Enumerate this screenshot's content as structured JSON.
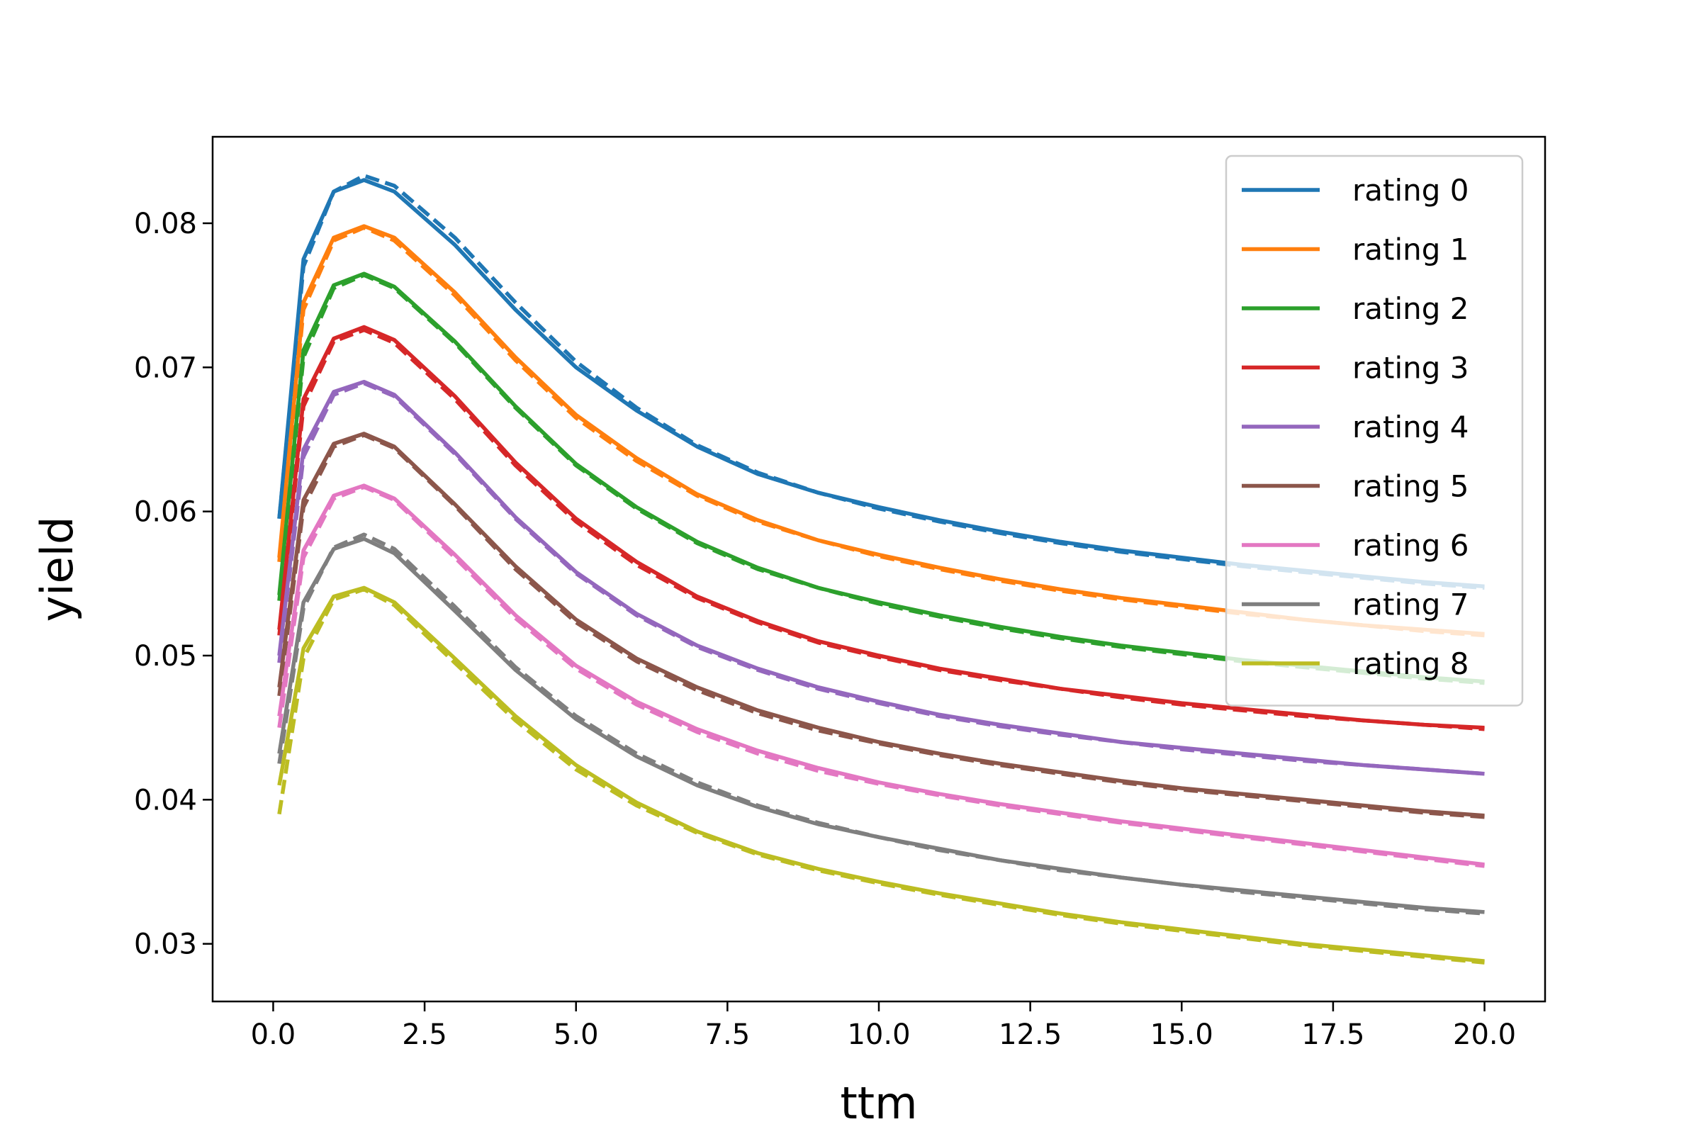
{
  "chart_data": {
    "type": "line",
    "title": "",
    "xlabel": "ttm",
    "ylabel": "yield",
    "xlim": [
      -1.0,
      21.0
    ],
    "ylim": [
      0.026,
      0.086
    ],
    "xticks": [
      0.0,
      2.5,
      5.0,
      7.5,
      10.0,
      12.5,
      15.0,
      17.5,
      20.0
    ],
    "xtick_labels": [
      "0.0",
      "2.5",
      "5.0",
      "7.5",
      "10.0",
      "12.5",
      "15.0",
      "17.5",
      "20.0"
    ],
    "yticks": [
      0.03,
      0.04,
      0.05,
      0.06,
      0.07,
      0.08
    ],
    "ytick_labels": [
      "0.03",
      "0.04",
      "0.05",
      "0.06",
      "0.07",
      "0.08"
    ],
    "grid": false,
    "legend_position": "top-right",
    "line_styles": [
      "solid",
      "dashed"
    ],
    "x": [
      0.1,
      0.5,
      1.0,
      1.5,
      2.0,
      3.0,
      4.0,
      5.0,
      6.0,
      7.0,
      8.0,
      9.0,
      10.0,
      11.0,
      12.0,
      13.0,
      14.0,
      15.0,
      16.0,
      17.0,
      18.0,
      19.0,
      20.0
    ],
    "series": [
      {
        "name": "rating 0",
        "color": "#1f77b4",
        "values": [
          0.0595,
          0.0775,
          0.0822,
          0.083,
          0.0822,
          0.0785,
          0.074,
          0.07,
          0.067,
          0.0645,
          0.0626,
          0.0613,
          0.0603,
          0.0594,
          0.0586,
          0.0579,
          0.0573,
          0.0568,
          0.0563,
          0.0559,
          0.0555,
          0.0551,
          0.0548
        ],
        "dashed_values": [
          0.0595,
          0.077,
          0.0822,
          0.0833,
          0.0826,
          0.079,
          0.0745,
          0.0704,
          0.0672,
          0.0646,
          0.0627,
          0.0613,
          0.0602,
          0.0593,
          0.0585,
          0.0578,
          0.0572,
          0.0567,
          0.0562,
          0.0558,
          0.0554,
          0.055,
          0.0547
        ]
      },
      {
        "name": "rating 1",
        "color": "#ff7f0e",
        "values": [
          0.0568,
          0.0745,
          0.079,
          0.0798,
          0.079,
          0.0752,
          0.0707,
          0.0667,
          0.0637,
          0.0612,
          0.0594,
          0.058,
          0.057,
          0.0561,
          0.0553,
          0.0546,
          0.054,
          0.0535,
          0.053,
          0.0525,
          0.0521,
          0.0518,
          0.0515
        ],
        "dashed_values": [
          0.0565,
          0.074,
          0.0788,
          0.0797,
          0.0788,
          0.075,
          0.0705,
          0.0665,
          0.0635,
          0.0611,
          0.0593,
          0.058,
          0.0569,
          0.056,
          0.0552,
          0.0545,
          0.0539,
          0.0534,
          0.0529,
          0.0525,
          0.0521,
          0.0517,
          0.0514
        ]
      },
      {
        "name": "rating 2",
        "color": "#2ca02c",
        "values": [
          0.0542,
          0.0712,
          0.0757,
          0.0765,
          0.0756,
          0.0718,
          0.0673,
          0.0633,
          0.0603,
          0.0579,
          0.0561,
          0.0547,
          0.0537,
          0.0528,
          0.052,
          0.0513,
          0.0507,
          0.0502,
          0.0497,
          0.0493,
          0.0489,
          0.0485,
          0.0482
        ],
        "dashed_values": [
          0.0538,
          0.0707,
          0.0755,
          0.0764,
          0.0755,
          0.0717,
          0.0672,
          0.0632,
          0.0602,
          0.0578,
          0.056,
          0.0547,
          0.0536,
          0.0527,
          0.0519,
          0.0512,
          0.0506,
          0.0501,
          0.0496,
          0.0492,
          0.0488,
          0.0484,
          0.0481
        ]
      },
      {
        "name": "rating 3",
        "color": "#d62728",
        "values": [
          0.0518,
          0.0678,
          0.072,
          0.0728,
          0.0719,
          0.068,
          0.0634,
          0.0595,
          0.0565,
          0.0541,
          0.0524,
          0.051,
          0.05,
          0.0491,
          0.0484,
          0.0477,
          0.0472,
          0.0467,
          0.0463,
          0.0459,
          0.0455,
          0.0452,
          0.045
        ],
        "dashed_values": [
          0.0514,
          0.0673,
          0.0718,
          0.0726,
          0.0717,
          0.0678,
          0.0632,
          0.0593,
          0.0563,
          0.054,
          0.0523,
          0.0509,
          0.0499,
          0.049,
          0.0483,
          0.0477,
          0.0471,
          0.0466,
          0.0462,
          0.0458,
          0.0455,
          0.0452,
          0.0449
        ]
      },
      {
        "name": "rating 4",
        "color": "#9467bd",
        "values": [
          0.05,
          0.0643,
          0.0683,
          0.069,
          0.0681,
          0.0641,
          0.0596,
          0.0558,
          0.0529,
          0.0507,
          0.0491,
          0.0478,
          0.0468,
          0.0459,
          0.0452,
          0.0446,
          0.044,
          0.0436,
          0.0432,
          0.0428,
          0.0424,
          0.0421,
          0.0418
        ],
        "dashed_values": [
          0.0495,
          0.0638,
          0.0681,
          0.0689,
          0.068,
          0.064,
          0.0595,
          0.0557,
          0.0528,
          0.0506,
          0.049,
          0.0477,
          0.0467,
          0.0458,
          0.0451,
          0.0445,
          0.044,
          0.0435,
          0.0431,
          0.0427,
          0.0424,
          0.0421,
          0.0418
        ]
      },
      {
        "name": "rating 5",
        "color": "#8c564b",
        "values": [
          0.0478,
          0.0608,
          0.0647,
          0.0654,
          0.0645,
          0.0605,
          0.0562,
          0.0525,
          0.0498,
          0.0478,
          0.0462,
          0.045,
          0.044,
          0.0432,
          0.0425,
          0.0419,
          0.0413,
          0.0408,
          0.0404,
          0.04,
          0.0396,
          0.0392,
          0.0389
        ],
        "dashed_values": [
          0.0472,
          0.0603,
          0.0645,
          0.0653,
          0.0644,
          0.0604,
          0.056,
          0.0523,
          0.0496,
          0.0476,
          0.046,
          0.0448,
          0.0439,
          0.0431,
          0.0424,
          0.0418,
          0.0412,
          0.0407,
          0.0403,
          0.0399,
          0.0395,
          0.0391,
          0.0388
        ]
      },
      {
        "name": "rating 6",
        "color": "#e377c2",
        "values": [
          0.0458,
          0.0573,
          0.0611,
          0.0618,
          0.0609,
          0.057,
          0.0528,
          0.0493,
          0.0468,
          0.0449,
          0.0434,
          0.0422,
          0.0412,
          0.0404,
          0.0397,
          0.0391,
          0.0385,
          0.038,
          0.0375,
          0.037,
          0.0365,
          0.036,
          0.0355
        ],
        "dashed_values": [
          0.045,
          0.0568,
          0.0609,
          0.0617,
          0.0608,
          0.0568,
          0.0526,
          0.0491,
          0.0466,
          0.0447,
          0.0432,
          0.042,
          0.0411,
          0.0403,
          0.0396,
          0.039,
          0.0384,
          0.0379,
          0.0374,
          0.0369,
          0.0364,
          0.0359,
          0.0354
        ]
      },
      {
        "name": "rating 7",
        "color": "#7f7f7f",
        "values": [
          0.0432,
          0.0537,
          0.0574,
          0.0581,
          0.0571,
          0.0531,
          0.049,
          0.0456,
          0.043,
          0.041,
          0.0395,
          0.0383,
          0.0374,
          0.0366,
          0.0358,
          0.0352,
          0.0346,
          0.0341,
          0.0337,
          0.0333,
          0.0329,
          0.0325,
          0.0322
        ],
        "dashed_values": [
          0.0425,
          0.0533,
          0.0575,
          0.0584,
          0.0574,
          0.0534,
          0.0492,
          0.0458,
          0.0432,
          0.0412,
          0.0396,
          0.0384,
          0.0374,
          0.0365,
          0.0358,
          0.0351,
          0.0346,
          0.0341,
          0.0336,
          0.0332,
          0.0328,
          0.0324,
          0.0321
        ]
      },
      {
        "name": "rating 8",
        "color": "#bcbd22",
        "values": [
          0.041,
          0.0505,
          0.0541,
          0.0547,
          0.0537,
          0.0498,
          0.0458,
          0.0424,
          0.0398,
          0.0378,
          0.0363,
          0.0352,
          0.0343,
          0.0335,
          0.0328,
          0.0321,
          0.0315,
          0.031,
          0.0305,
          0.03,
          0.0296,
          0.0292,
          0.0288
        ],
        "dashed_values": [
          0.039,
          0.0498,
          0.0539,
          0.0546,
          0.0535,
          0.0495,
          0.0455,
          0.0421,
          0.0396,
          0.0377,
          0.0362,
          0.0351,
          0.0342,
          0.0334,
          0.0327,
          0.032,
          0.0314,
          0.0309,
          0.0304,
          0.0299,
          0.0295,
          0.0291,
          0.0287
        ]
      }
    ]
  }
}
